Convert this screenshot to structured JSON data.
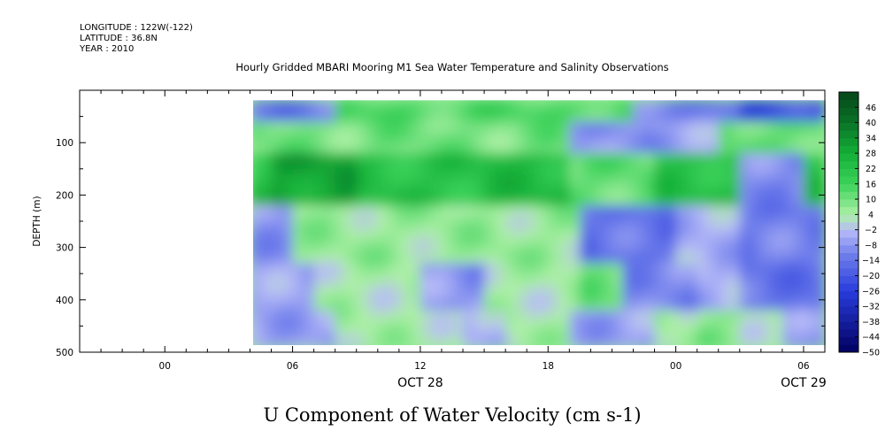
{
  "header": {
    "longitude": "LONGITUDE : 122W(-122)",
    "latitude": "LATITUDE : 36.8N",
    "year": "YEAR : 2010",
    "title": "Hourly Gridded MBARI Mooring M1 Sea Water Temperature and Salinity Observations"
  },
  "chart_data": {
    "type": "heatmap",
    "title": "U Component of Water Velocity (cm s-1)",
    "ylabel": "DEPTH (m)",
    "xlabel": "",
    "x_tick_labels": [
      "00",
      "06",
      "12",
      "18",
      "00",
      "06"
    ],
    "x_tick_hours": [
      0,
      6,
      12,
      18,
      24,
      30
    ],
    "date_labels": [
      {
        "text": "OCT 28",
        "hour": 12
      },
      {
        "text": "OCT 29",
        "hour": 30
      }
    ],
    "xlim_hours": [
      -4,
      31
    ],
    "data_start_hour": 4,
    "data_end_hour": 31,
    "y_ticks": [
      100,
      200,
      300,
      400,
      500
    ],
    "ylim": [
      0,
      500
    ],
    "y_inverted": true,
    "data_depth_range": [
      20,
      490
    ],
    "colorbar_labels": [
      46,
      40,
      34,
      28,
      22,
      16,
      10,
      4,
      -2,
      -8,
      -14,
      -20,
      -26,
      -32,
      -38,
      -44,
      -50
    ],
    "colorbar_range": [
      -50,
      52
    ],
    "colors": {
      "strong_positive": "#0a5a1e",
      "positive": "#1fc34d",
      "weak_positive": "#a5ef9f",
      "weak_negative": "#b4b9f7",
      "negative": "#7f8aee",
      "strong_negative": "#00005f"
    },
    "depth_bands": [
      {
        "depth_range": [
          20,
          60
        ],
        "mean_value": -10
      },
      {
        "depth_range": [
          60,
          120
        ],
        "mean_value": 8
      },
      {
        "depth_range": [
          120,
          220
        ],
        "mean_value": 20
      },
      {
        "depth_range": [
          220,
          320
        ],
        "mean_value": 6
      },
      {
        "depth_range": [
          320,
          420
        ],
        "mean_value": 2
      },
      {
        "depth_range": [
          420,
          490
        ],
        "mean_value": -4
      }
    ]
  }
}
